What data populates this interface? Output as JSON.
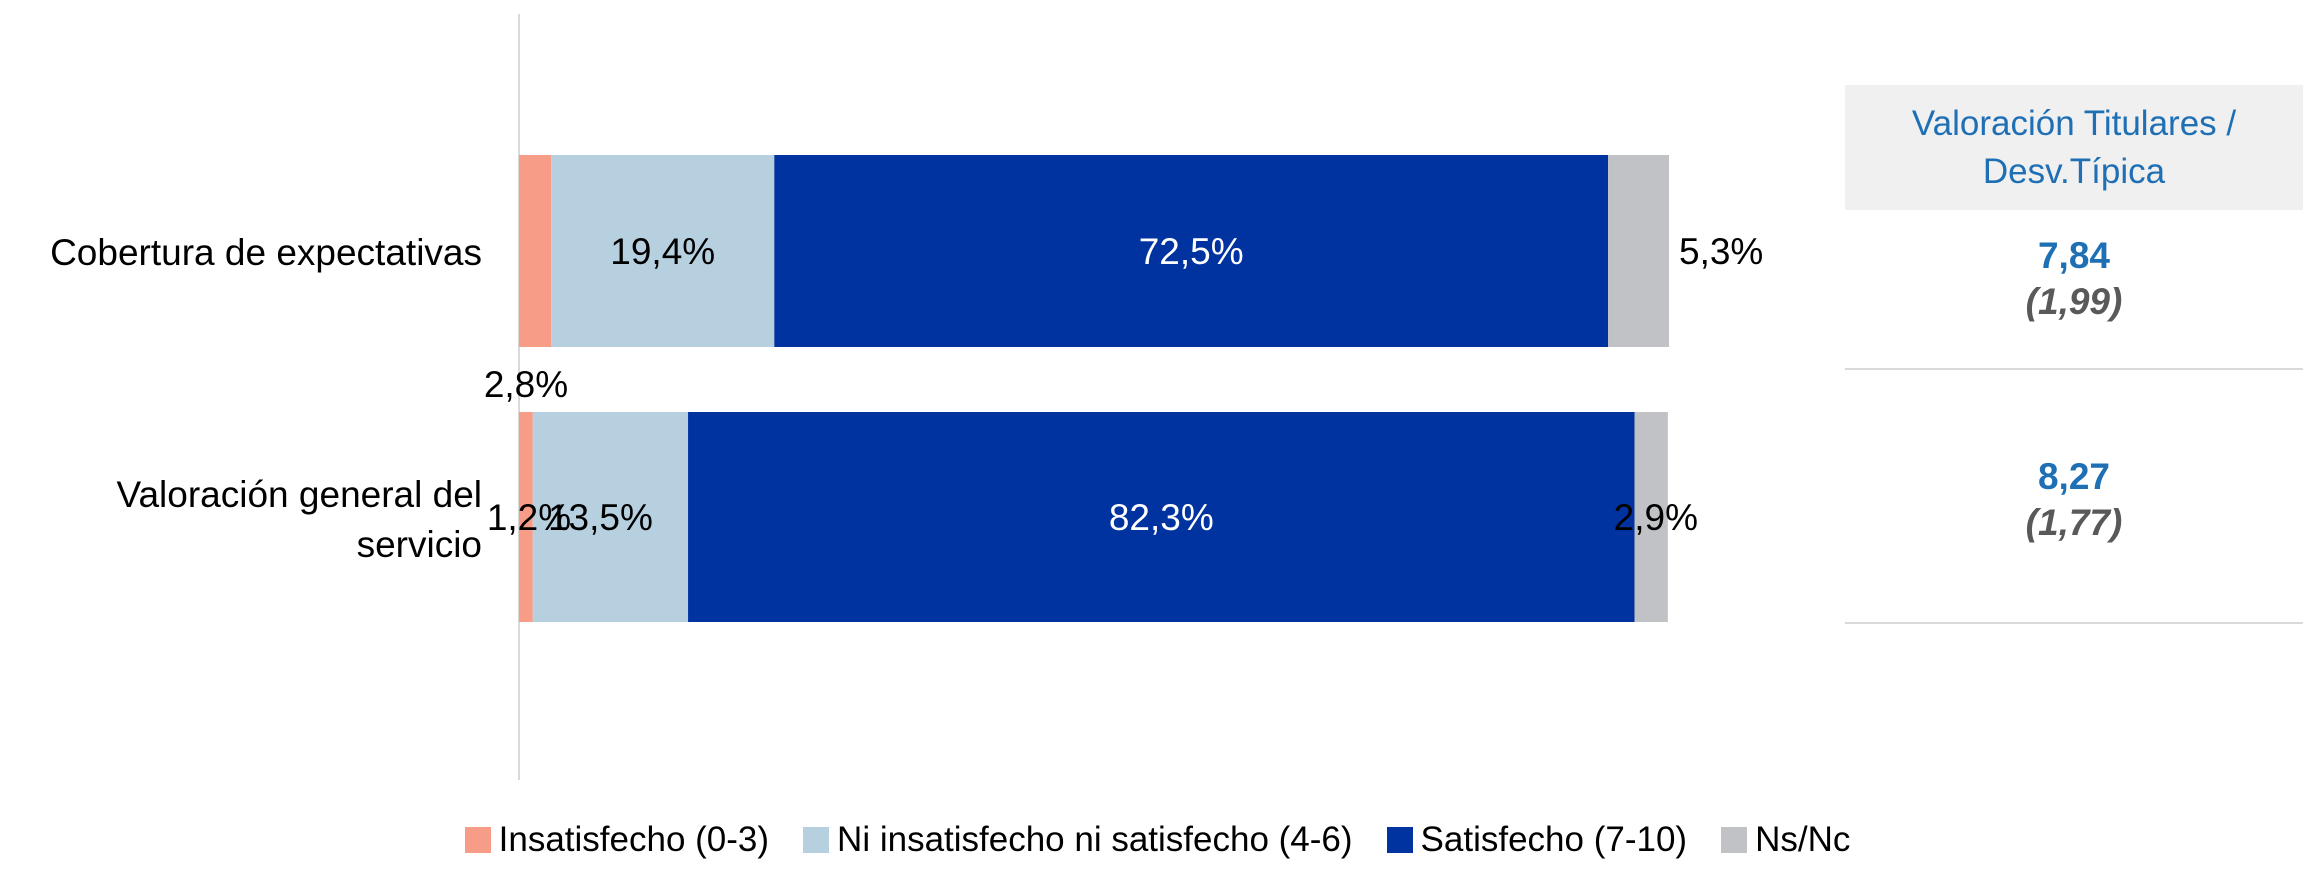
{
  "chart_data": {
    "type": "bar",
    "orientation": "horizontal",
    "stacked": true,
    "categories": [
      "Cobertura de expectativas",
      "Valoración general del servicio"
    ],
    "series": [
      {
        "name": "Insatisfecho (0-3)",
        "color": "#f79c87",
        "values": [
          2.8,
          1.2
        ],
        "labels": [
          "2,8%",
          "1,2%"
        ]
      },
      {
        "name": "Ni insatisfecho ni satisfecho (4-6)",
        "color": "#b7d0df",
        "values": [
          19.4,
          13.5
        ],
        "labels": [
          "19,4%",
          "13,5%"
        ]
      },
      {
        "name": "Satisfecho (7-10)",
        "color": "#0033a0",
        "values": [
          72.5,
          82.3
        ],
        "labels": [
          "72,5%",
          "82,3%"
        ]
      },
      {
        "name": "Ns/Nc",
        "color": "#c0c2c6",
        "values": [
          5.3,
          2.9
        ],
        "labels": [
          "5,3%",
          "2,9%"
        ]
      }
    ],
    "xlim": [
      0,
      100
    ],
    "legend_position": "bottom"
  },
  "table": {
    "header": "Valoración Titulares / Desv.Típica",
    "rows": [
      {
        "value": "7,84",
        "sd": "(1,99)"
      },
      {
        "value": "8,27",
        "sd": "(1,77)"
      }
    ]
  }
}
